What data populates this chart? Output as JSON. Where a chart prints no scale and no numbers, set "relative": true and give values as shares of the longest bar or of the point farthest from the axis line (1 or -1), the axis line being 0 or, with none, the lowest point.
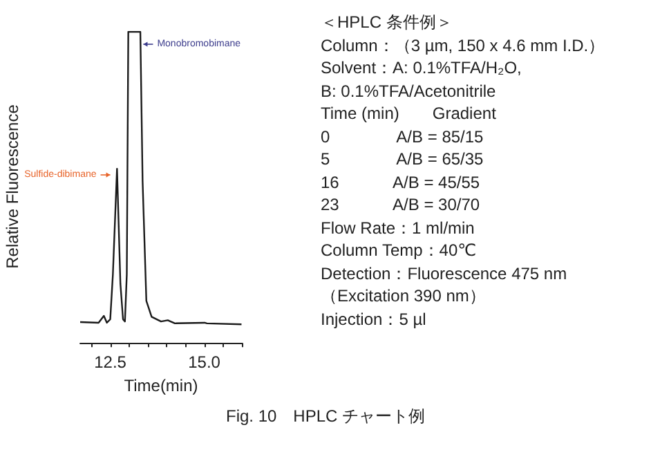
{
  "chart_data": [
    {
      "type": "line",
      "relative": true,
      "xlabel": "Time(min)",
      "ylabel": "Relative Fluorescence",
      "xlim": [
        11.7,
        16.0
      ],
      "xticks": [
        {
          "value": 12,
          "label": null
        },
        12.5,
        {
          "value": 13,
          "label": null
        },
        {
          "value": 13.5,
          "label": null
        },
        {
          "value": 14,
          "label": null
        },
        {
          "value": 14.5,
          "label": null
        },
        {
          "value": 15,
          "label": "15.0"
        },
        {
          "value": 15.5,
          "label": null
        },
        {
          "value": 16,
          "label": null
        }
      ],
      "series": [
        {
          "color": "#1a1a1a",
          "x": [
            11.7,
            12.19,
            12.33,
            12.41,
            12.5,
            12.57,
            12.68,
            12.77,
            12.84,
            12.89,
            12.94,
            12.98,
            13.3,
            13.36,
            13.46,
            13.6,
            13.85,
            14.03,
            14.22,
            15.01,
            15.07,
            15.99
          ],
          "values": [
            0.067,
            0.065,
            0.087,
            0.065,
            0.076,
            0.22,
            0.56,
            0.19,
            0.076,
            0.069,
            0.22,
            1,
            1,
            0.52,
            0.135,
            0.084,
            0.069,
            0.073,
            0.063,
            0.065,
            0.063,
            0.06
          ]
        }
      ],
      "annotations": [
        {
          "text": "Monobromobimane",
          "x": 13.38,
          "y": 0.96
        },
        {
          "text": "Sulfide-dibimane",
          "x": 12.5,
          "y": 0.54
        }
      ],
      "grid": false,
      "marker": "none",
      "line_style": "solid"
    },
    {
      "type": "other",
      "title": "＜HPLC 条件例＞",
      "annotations": [
        "Column：（3 µm, 150 x 4.6 mm I.D.）",
        "Solvent：A: 0.1%TFA/H₂O,",
        "B: 0.1%TFA/Acetonitrile",
        "Time (min)　　Gradient",
        "0　　　　A/B = 85/15",
        "5　　　　A/B = 65/35",
        "16　　　 A/B = 45/55",
        "23　　　 A/B = 30/70",
        "Flow Rate：1 ml/min",
        "Column Temp：40℃",
        "Detection：Fluorescence 475 nm",
        "（Excitation 390 nm）",
        "Injection：5 µl",
        "Fig. 10　HPLC チャート例"
      ]
    }
  ]
}
